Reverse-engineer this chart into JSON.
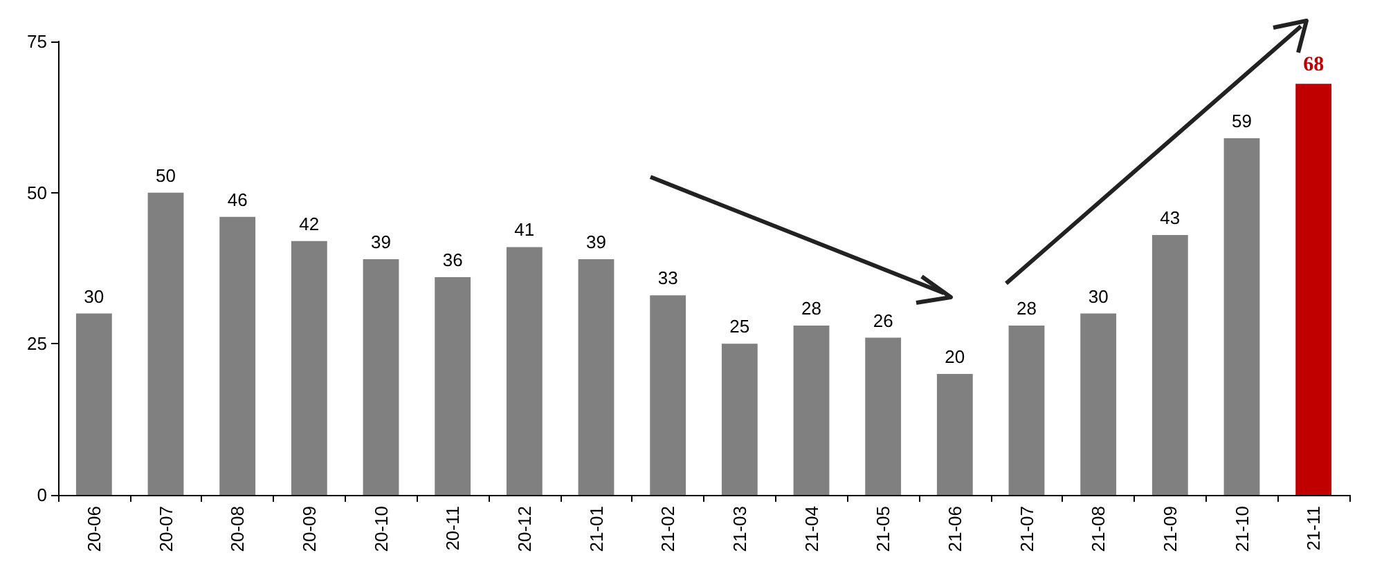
{
  "chart_data": {
    "type": "bar",
    "categories": [
      "20-06",
      "20-07",
      "20-08",
      "20-09",
      "20-10",
      "20-11",
      "20-12",
      "21-01",
      "21-02",
      "21-03",
      "21-04",
      "21-05",
      "21-06",
      "21-07",
      "21-08",
      "21-09",
      "21-10",
      "21-11"
    ],
    "values": [
      30,
      50,
      46,
      42,
      39,
      36,
      41,
      39,
      33,
      25,
      28,
      26,
      20,
      28,
      30,
      43,
      59,
      68
    ],
    "colors": [
      "#808080",
      "#808080",
      "#808080",
      "#808080",
      "#808080",
      "#808080",
      "#808080",
      "#808080",
      "#808080",
      "#808080",
      "#808080",
      "#808080",
      "#808080",
      "#808080",
      "#808080",
      "#808080",
      "#808080",
      "#c00000"
    ],
    "ylim": [
      0,
      75
    ],
    "yticks": [
      0,
      25,
      50,
      75
    ],
    "data_labels": true
  }
}
